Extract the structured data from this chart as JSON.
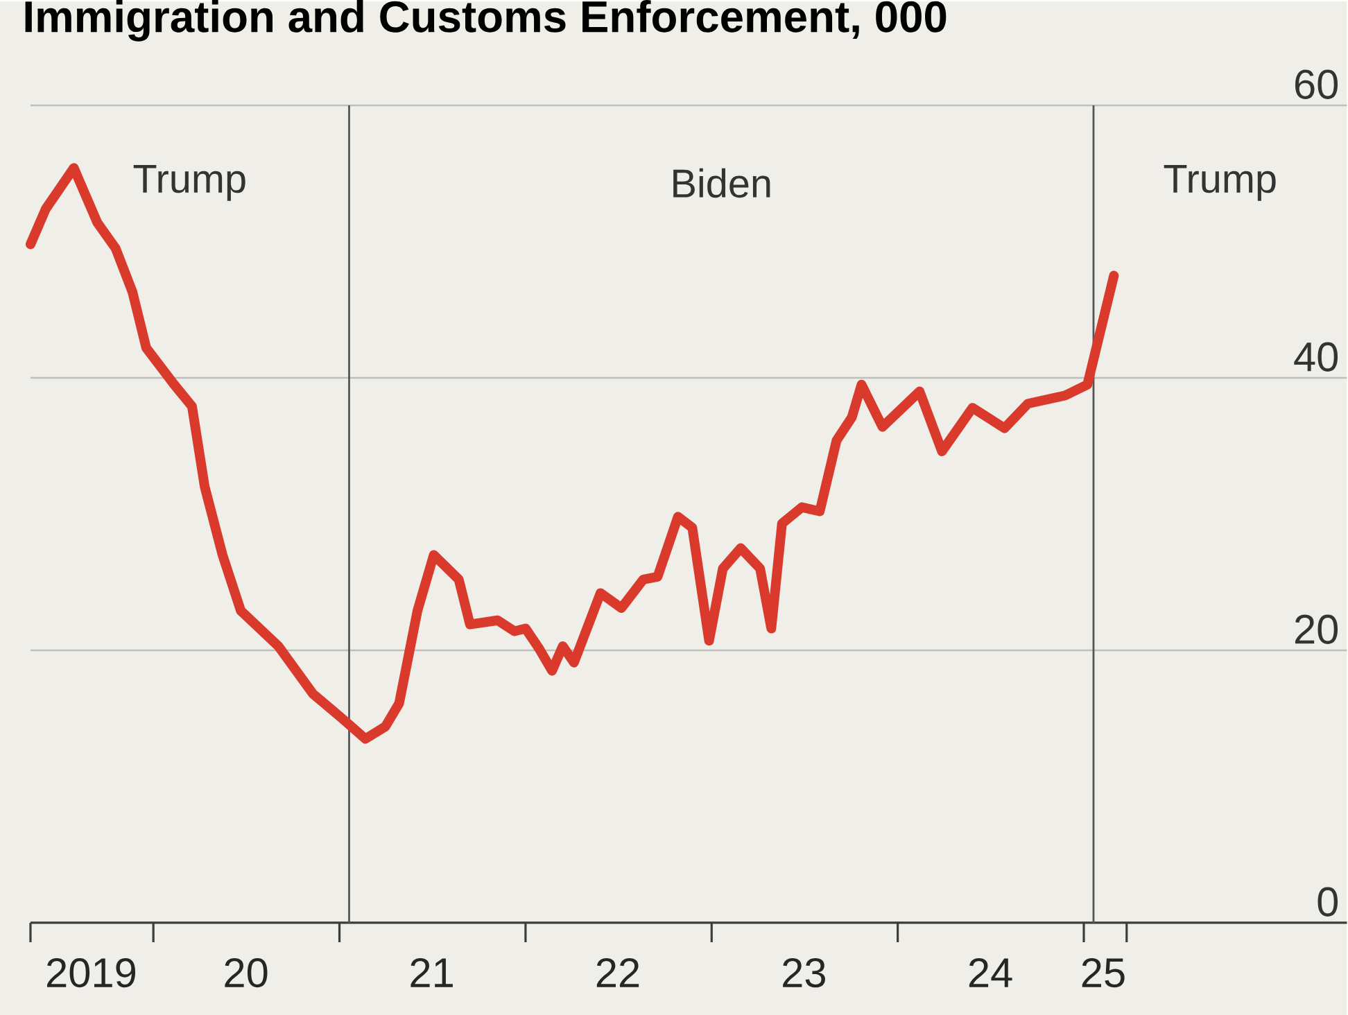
{
  "chart_data": {
    "type": "line",
    "title": "Immigration and Customs Enforcement, 000",
    "x": [
      "2019-05-05",
      "2019-06-04",
      "2019-07-29",
      "2019-09-13",
      "2019-10-19",
      "2019-11-21",
      "2019-12-18",
      "2020-02-11",
      "2020-03-17",
      "2020-04-11",
      "2020-05-16",
      "2020-06-21",
      "2020-09-03",
      "2020-11-10",
      "2021-01-03",
      "2021-02-21",
      "2021-04-01",
      "2021-04-28",
      "2021-06-03",
      "2021-07-05",
      "2021-08-23",
      "2021-09-14",
      "2021-11-07",
      "2021-12-10",
      "2022-01-01",
      "2022-01-28",
      "2022-02-22",
      "2022-03-15",
      "2022-04-06",
      "2022-05-28",
      "2022-07-08",
      "2022-08-20",
      "2022-09-17",
      "2022-10-27",
      "2022-11-24",
      "2022-12-27",
      "2023-01-23",
      "2023-02-27",
      "2023-04-06",
      "2023-04-28",
      "2023-05-19",
      "2023-06-27",
      "2023-08-01",
      "2023-09-03",
      "2023-10-03",
      "2023-10-22",
      "2023-12-02",
      "2024-02-13",
      "2024-03-28",
      "2024-05-27",
      "2024-07-29",
      "2024-09-13",
      "2024-11-25",
      "2025-01-08",
      "2025-03-01"
    ],
    "series": [
      {
        "color": "#d93a2b",
        "values": [
          49.8,
          52.4,
          55.4,
          51.4,
          49.5,
          46.3,
          42.2,
          39.5,
          37.9,
          32.0,
          27.0,
          22.9,
          20.3,
          16.8,
          15.1,
          13.5,
          14.4,
          16.1,
          22.9,
          27.0,
          25.2,
          21.9,
          22.2,
          21.4,
          21.6,
          20.1,
          18.5,
          20.3,
          19.1,
          24.2,
          23.1,
          25.2,
          25.4,
          29.8,
          29.0,
          20.7,
          26.0,
          27.5,
          26.0,
          21.6,
          29.3,
          30.5,
          30.2,
          35.4,
          37.1,
          39.5,
          36.4,
          39.0,
          34.6,
          37.8,
          36.3,
          38.1,
          38.7,
          39.5,
          47.5
        ]
      }
    ],
    "xlim": [
      "2019-05-05",
      "2026-06-01"
    ],
    "ylim": [
      0,
      60
    ],
    "xticks": [
      {
        "value": "2019-05-05",
        "label": null
      },
      {
        "value": "2020-01-01",
        "label": null
      },
      {
        "value": "2021-01-01",
        "label": null
      },
      {
        "value": "2022-01-01",
        "label": null
      },
      {
        "value": "2023-01-01",
        "label": null
      },
      {
        "value": "2024-01-01",
        "label": null
      },
      {
        "value": "2025-01-01",
        "label": null
      },
      {
        "value": "2025-03-26",
        "label": null
      },
      {
        "value": "2019-09-01",
        "label": "2019"
      },
      {
        "value": "2020-07-01",
        "label": "20"
      },
      {
        "value": "2021-07-01",
        "label": "21"
      },
      {
        "value": "2022-07-01",
        "label": "22"
      },
      {
        "value": "2023-07-01",
        "label": "23"
      },
      {
        "value": "2024-07-01",
        "label": "24"
      },
      {
        "value": "2025-02-08",
        "label": "25"
      }
    ],
    "yticks": [
      0,
      20,
      40,
      60
    ],
    "grid": "y",
    "ref_lines": [
      {
        "axis": "x",
        "value": "2021-01-20",
        "color": "#555555"
      },
      {
        "axis": "x",
        "value": "2025-01-20",
        "color": "#555555"
      }
    ],
    "annotations": [
      "Trump",
      "Biden",
      "Trump"
    ]
  }
}
